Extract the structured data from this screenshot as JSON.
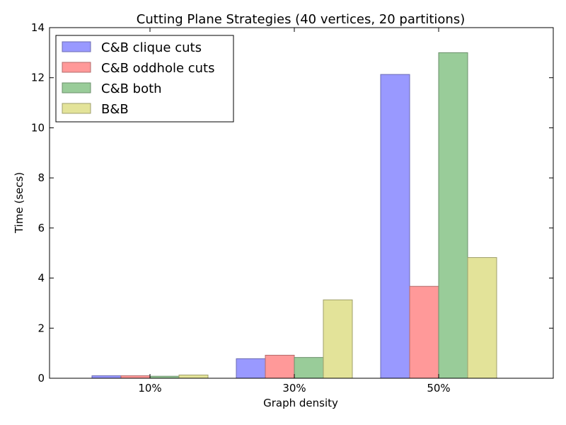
{
  "chart_data": {
    "type": "bar",
    "title": "Cutting Plane Strategies (40 vertices, 20 partitions)",
    "xlabel": "Graph density",
    "ylabel": "Time (secs)",
    "categories": [
      "10%",
      "30%",
      "50%"
    ],
    "ylim": [
      0,
      14
    ],
    "yticks": [
      0,
      2,
      4,
      6,
      8,
      10,
      12,
      14
    ],
    "grid": false,
    "legend_position": "top-left",
    "series": [
      {
        "name": "C&B clique cuts",
        "values": [
          0.1,
          0.78,
          12.13
        ],
        "color": "#9999ff",
        "edge": "#6b6bb3"
      },
      {
        "name": "C&B oddhole cuts",
        "values": [
          0.1,
          0.92,
          3.67
        ],
        "color": "#ff9999",
        "edge": "#b36b6b"
      },
      {
        "name": "C&B both",
        "values": [
          0.08,
          0.83,
          13.0
        ],
        "color": "#99cc99",
        "edge": "#6b8f6b"
      },
      {
        "name": "B&B",
        "values": [
          0.13,
          3.13,
          4.82
        ],
        "color": "#e3e399",
        "edge": "#9f9f6b"
      }
    ]
  }
}
